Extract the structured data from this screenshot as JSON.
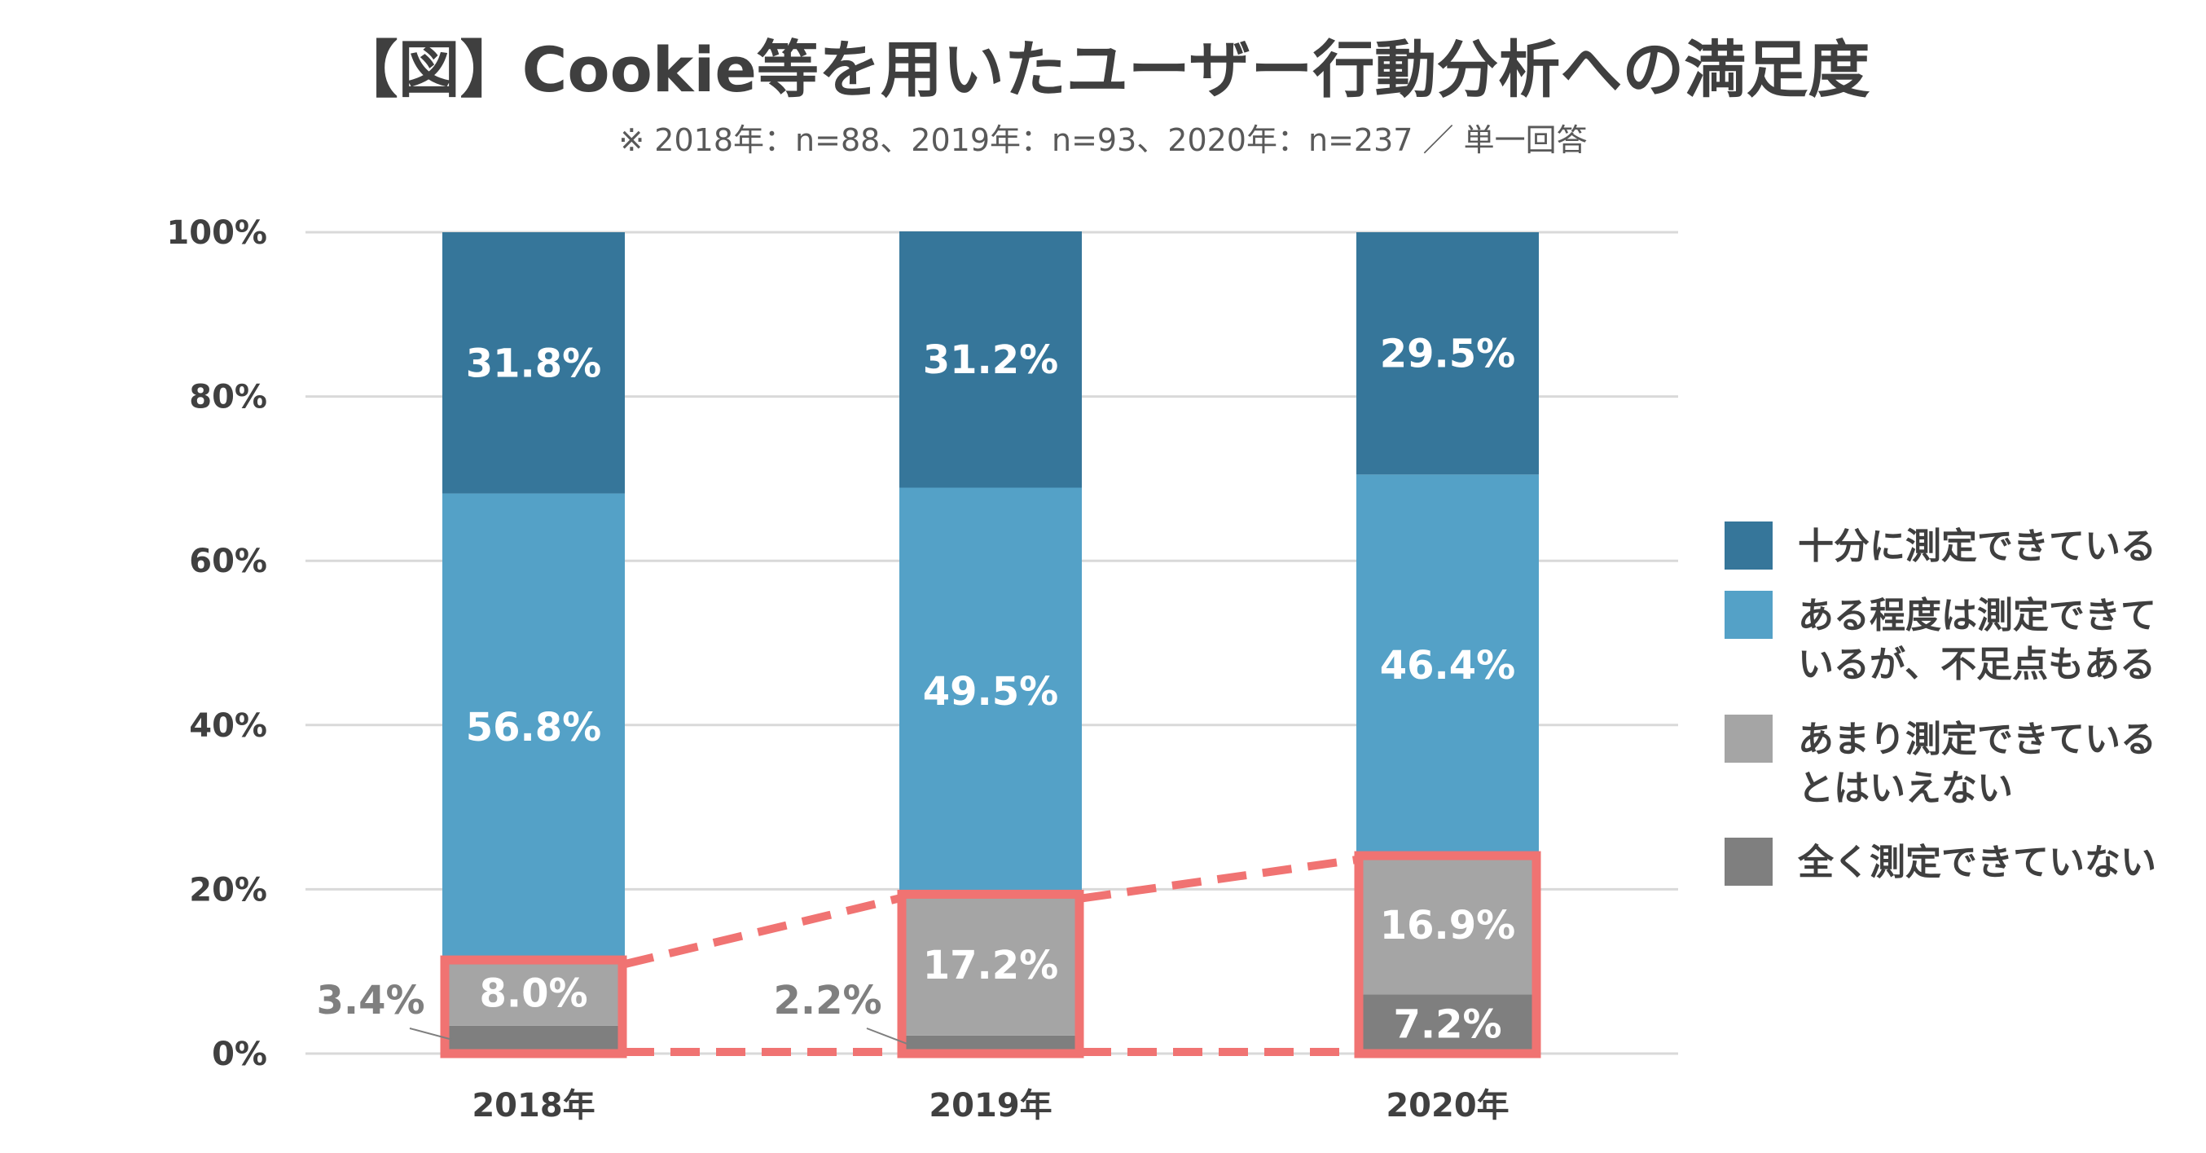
{
  "chart_data": {
    "type": "bar",
    "stacked": true,
    "title": "【図】Cookie等を用いたユーザー行動分析への満足度",
    "subtitle": "※ 2018年：n=88、2019年：n=93、2020年：n=237 ／ 単一回答",
    "categories": [
      "2018年",
      "2019年",
      "2020年"
    ],
    "ylim": [
      0,
      100
    ],
    "yticks": [
      0,
      20,
      40,
      60,
      80,
      100
    ],
    "ytick_labels": [
      "0%",
      "20%",
      "40%",
      "60%",
      "80%",
      "100%"
    ],
    "grid": true,
    "legend_position": "right",
    "series": [
      {
        "name": "全く測定できていない",
        "lines": [
          "全く測定できていない"
        ],
        "values": [
          3.4,
          2.2,
          7.2
        ],
        "labels": [
          "3.4%",
          "2.2%",
          "7.2%"
        ],
        "color": "#7f7f7f"
      },
      {
        "name": "あまり測定できているとはいえない",
        "lines": [
          "あまり測定できている",
          "とはいえない"
        ],
        "values": [
          8.0,
          17.2,
          16.9
        ],
        "labels": [
          "8.0%",
          "17.2%",
          "16.9%"
        ],
        "color": "#a5a5a5"
      },
      {
        "name": "ある程度は測定できているが、不足点もある",
        "lines": [
          "ある程度は測定できて",
          "いるが、不足点もある"
        ],
        "values": [
          56.8,
          49.5,
          46.4
        ],
        "labels": [
          "56.8%",
          "49.5%",
          "46.4%"
        ],
        "color": "#54a1c7"
      },
      {
        "name": "十分に測定できている",
        "lines": [
          "十分に測定できている"
        ],
        "values": [
          31.8,
          31.2,
          29.5
        ],
        "labels": [
          "31.8%",
          "31.2%",
          "29.5%"
        ],
        "color": "#36769a"
      }
    ],
    "highlight_color": "#f07372"
  }
}
